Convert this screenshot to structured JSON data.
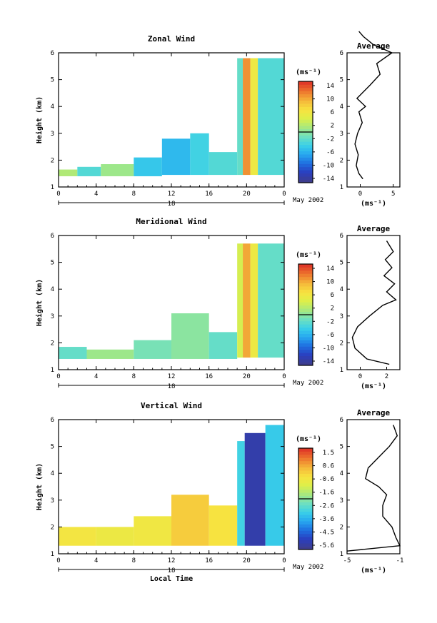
{
  "chart_data": [
    {
      "type": "heatmap",
      "title": "Zonal Wind",
      "ylabel": "Height (km)",
      "xlabel": "",
      "x_ticks": [
        "0",
        "4",
        "8",
        "12",
        "16",
        "20",
        "0"
      ],
      "y_ticks": [
        1,
        2,
        3,
        4,
        5,
        6
      ],
      "ylim": [
        1,
        6
      ],
      "xlim_hours": [
        0,
        24
      ],
      "day_label": "18",
      "date_label": "May 2002",
      "colorbar": {
        "unit": "(ms⁻¹)",
        "ticks": [
          "14",
          "10",
          "6",
          "2",
          "-2",
          "-6",
          "-10",
          "-14"
        ],
        "range": [
          -16,
          16
        ]
      },
      "cells": [
        {
          "t0": 0.0,
          "t1": 2.0,
          "h0": 1.4,
          "h1": 1.65,
          "v": 2
        },
        {
          "t0": 2.0,
          "t1": 4.5,
          "h0": 1.4,
          "h1": 1.75,
          "v": -3
        },
        {
          "t0": 4.5,
          "t1": 8.0,
          "h0": 1.4,
          "h1": 1.85,
          "v": 1
        },
        {
          "t0": 8.0,
          "t1": 11.0,
          "h0": 1.4,
          "h1": 2.1,
          "v": -5
        },
        {
          "t0": 11.0,
          "t1": 14.0,
          "h0": 1.45,
          "h1": 2.8,
          "v": -6
        },
        {
          "t0": 14.0,
          "t1": 16.0,
          "h0": 1.45,
          "h1": 3.0,
          "v": -4
        },
        {
          "t0": 16.0,
          "t1": 19.0,
          "h0": 1.45,
          "h1": 2.3,
          "v": -3
        },
        {
          "t0": 19.0,
          "t1": 19.6,
          "h0": 1.45,
          "h1": 5.8,
          "v": -2
        },
        {
          "t0": 19.6,
          "t1": 20.4,
          "h0": 1.45,
          "h1": 5.8,
          "v": 12
        },
        {
          "t0": 20.4,
          "t1": 21.2,
          "h0": 1.45,
          "h1": 5.8,
          "v": 6
        },
        {
          "t0": 21.2,
          "t1": 24.0,
          "h0": 1.45,
          "h1": 5.8,
          "v": -3
        }
      ],
      "average": {
        "title": "Average",
        "xlabel": "(ms⁻¹)",
        "x_ticks": [
          0,
          5
        ],
        "xlim": [
          -2,
          6
        ],
        "ylim": [
          1,
          6
        ],
        "y_ticks": [
          1,
          2,
          3,
          4,
          5,
          6
        ],
        "profile": [
          {
            "h": 1.3,
            "u": 0.4
          },
          {
            "h": 1.5,
            "u": -0.2
          },
          {
            "h": 1.8,
            "u": -0.6
          },
          {
            "h": 2.2,
            "u": -0.3
          },
          {
            "h": 2.6,
            "u": -0.8
          },
          {
            "h": 3.0,
            "u": -0.4
          },
          {
            "h": 3.4,
            "u": 0.3
          },
          {
            "h": 3.8,
            "u": -0.2
          },
          {
            "h": 4.0,
            "u": 0.8
          },
          {
            "h": 4.3,
            "u": -0.5
          },
          {
            "h": 4.8,
            "u": 1.5
          },
          {
            "h": 5.2,
            "u": 3.0
          },
          {
            "h": 5.6,
            "u": 2.5
          },
          {
            "h": 6.0,
            "u": 4.8
          },
          {
            "h": 6.3,
            "u": 2.0
          },
          {
            "h": 6.6,
            "u": 0.5
          },
          {
            "h": 6.8,
            "u": -0.2
          }
        ]
      }
    },
    {
      "type": "heatmap",
      "title": "Meridional Wind",
      "ylabel": "Height (km)",
      "xlabel": "",
      "x_ticks": [
        "0",
        "4",
        "8",
        "12",
        "16",
        "20",
        "0"
      ],
      "y_ticks": [
        1,
        2,
        3,
        4,
        5,
        6
      ],
      "ylim": [
        1,
        6
      ],
      "xlim_hours": [
        0,
        24
      ],
      "day_label": "18",
      "date_label": "May 2002",
      "colorbar": {
        "unit": "(ms⁻¹)",
        "ticks": [
          "14",
          "10",
          "6",
          "2",
          "-2",
          "-6",
          "-10",
          "-14"
        ],
        "range": [
          -16,
          16
        ]
      },
      "cells": [
        {
          "t0": 0.0,
          "t1": 3.0,
          "h0": 1.4,
          "h1": 1.85,
          "v": -2
        },
        {
          "t0": 3.0,
          "t1": 8.0,
          "h0": 1.4,
          "h1": 1.75,
          "v": 1
        },
        {
          "t0": 8.0,
          "t1": 12.0,
          "h0": 1.4,
          "h1": 2.1,
          "v": -1
        },
        {
          "t0": 12.0,
          "t1": 16.0,
          "h0": 1.4,
          "h1": 3.1,
          "v": 0
        },
        {
          "t0": 16.0,
          "t1": 19.0,
          "h0": 1.4,
          "h1": 2.4,
          "v": -2
        },
        {
          "t0": 19.0,
          "t1": 19.6,
          "h0": 1.45,
          "h1": 5.7,
          "v": 4
        },
        {
          "t0": 19.6,
          "t1": 20.4,
          "h0": 1.45,
          "h1": 5.7,
          "v": 11
        },
        {
          "t0": 20.4,
          "t1": 21.2,
          "h0": 1.45,
          "h1": 5.7,
          "v": 6
        },
        {
          "t0": 21.2,
          "t1": 24.0,
          "h0": 1.45,
          "h1": 5.7,
          "v": -2
        }
      ],
      "average": {
        "title": "Average",
        "xlabel": "(ms⁻¹)",
        "x_ticks": [
          0,
          2
        ],
        "xlim": [
          -1,
          3
        ],
        "ylim": [
          1,
          6
        ],
        "y_ticks": [
          1,
          2,
          3,
          4,
          5,
          6
        ],
        "profile": [
          {
            "h": 1.2,
            "u": 2.2
          },
          {
            "h": 1.4,
            "u": 0.5
          },
          {
            "h": 1.8,
            "u": -0.4
          },
          {
            "h": 2.2,
            "u": -0.6
          },
          {
            "h": 2.6,
            "u": -0.2
          },
          {
            "h": 3.0,
            "u": 0.7
          },
          {
            "h": 3.4,
            "u": 1.7
          },
          {
            "h": 3.6,
            "u": 2.7
          },
          {
            "h": 3.9,
            "u": 2.0
          },
          {
            "h": 4.2,
            "u": 2.6
          },
          {
            "h": 4.5,
            "u": 1.8
          },
          {
            "h": 4.8,
            "u": 2.4
          },
          {
            "h": 5.1,
            "u": 1.9
          },
          {
            "h": 5.4,
            "u": 2.5
          },
          {
            "h": 5.8,
            "u": 2.0
          }
        ]
      }
    },
    {
      "type": "heatmap",
      "title": "Vertical Wind",
      "ylabel": "Height (km)",
      "xlabel": "Local Time",
      "x_ticks": [
        "0",
        "4",
        "8",
        "12",
        "16",
        "20",
        "0"
      ],
      "y_ticks": [
        1,
        2,
        3,
        4,
        5,
        6
      ],
      "ylim": [
        1,
        6
      ],
      "xlim_hours": [
        0,
        24
      ],
      "day_label": "18",
      "date_label": "May 2002",
      "colorbar": {
        "unit": "(ms⁻¹)",
        "ticks": [
          "1.5",
          "0.6",
          "-0.6",
          "-1.6",
          "-2.6",
          "-3.6",
          "-4.5",
          "-5.6"
        ],
        "range": [
          -6.0,
          2.0
        ]
      },
      "cells": [
        {
          "t0": 0.0,
          "t1": 4.0,
          "h0": 1.3,
          "h1": 2.0,
          "v": -0.3
        },
        {
          "t0": 4.0,
          "t1": 8.0,
          "h0": 1.3,
          "h1": 2.0,
          "v": -0.5
        },
        {
          "t0": 8.0,
          "t1": 12.0,
          "h0": 1.3,
          "h1": 2.4,
          "v": -0.4
        },
        {
          "t0": 12.0,
          "t1": 16.0,
          "h0": 1.3,
          "h1": 3.2,
          "v": 0.2
        },
        {
          "t0": 16.0,
          "t1": 19.0,
          "h0": 1.3,
          "h1": 2.8,
          "v": -0.2
        },
        {
          "t0": 19.0,
          "t1": 19.8,
          "h0": 1.3,
          "h1": 5.2,
          "v": -3.0
        },
        {
          "t0": 19.8,
          "t1": 22.0,
          "h0": 1.3,
          "h1": 5.5,
          "v": -5.6
        },
        {
          "t0": 22.0,
          "t1": 24.0,
          "h0": 1.3,
          "h1": 5.8,
          "v": -3.2
        }
      ],
      "average": {
        "title": "Average",
        "xlabel": "(ms⁻¹)",
        "x_ticks": [
          -5,
          -1
        ],
        "xlim": [
          -5,
          -1
        ],
        "ylim": [
          1,
          6
        ],
        "y_ticks": [
          1,
          2,
          3,
          4,
          5,
          6
        ],
        "profile": [
          {
            "h": 1.1,
            "u": -5.0
          },
          {
            "h": 1.3,
            "u": -1.0
          },
          {
            "h": 1.6,
            "u": -1.3
          },
          {
            "h": 2.0,
            "u": -1.6
          },
          {
            "h": 2.4,
            "u": -2.3
          },
          {
            "h": 2.8,
            "u": -2.3
          },
          {
            "h": 3.2,
            "u": -2.0
          },
          {
            "h": 3.5,
            "u": -2.6
          },
          {
            "h": 3.8,
            "u": -3.6
          },
          {
            "h": 4.2,
            "u": -3.4
          },
          {
            "h": 4.6,
            "u": -2.6
          },
          {
            "h": 5.0,
            "u": -1.8
          },
          {
            "h": 5.4,
            "u": -1.2
          },
          {
            "h": 5.8,
            "u": -1.5
          }
        ]
      }
    }
  ]
}
